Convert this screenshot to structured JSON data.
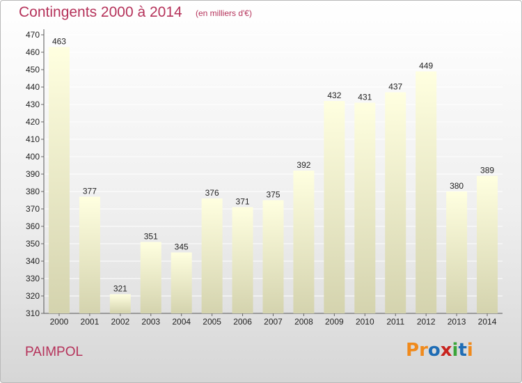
{
  "header": {
    "title": "Contingents 2000 à 2014",
    "subtitle": "(en milliers d'€)"
  },
  "footer": {
    "place": "PAIMPOL",
    "logo": [
      "P",
      "r",
      "o",
      "x",
      "i",
      "t",
      "i"
    ]
  },
  "colors": {
    "title": "#b5325a",
    "bar_top": "#ffffe0",
    "bar_bottom": "#d4d3ae",
    "logo": [
      "#f08a1c",
      "#f08a1c",
      "#1f6db5",
      "#c8231e",
      "#3aa53a",
      "#1f6db5",
      "#f08a1c"
    ]
  },
  "chart_data": {
    "type": "bar",
    "title": "Contingents 2000 à 2014",
    "subtitle": "(en milliers d'€)",
    "categories": [
      "2000",
      "2001",
      "2002",
      "2003",
      "2004",
      "2005",
      "2006",
      "2007",
      "2008",
      "2009",
      "2010",
      "2011",
      "2012",
      "2013",
      "2014"
    ],
    "values": [
      463,
      377,
      321,
      351,
      345,
      376,
      371,
      375,
      392,
      432,
      431,
      437,
      449,
      380,
      389
    ],
    "ylim": [
      310,
      470
    ],
    "yticks": [
      310,
      320,
      330,
      340,
      350,
      360,
      370,
      380,
      390,
      400,
      410,
      420,
      430,
      440,
      450,
      460,
      470
    ],
    "grid": true,
    "legend": "none"
  }
}
